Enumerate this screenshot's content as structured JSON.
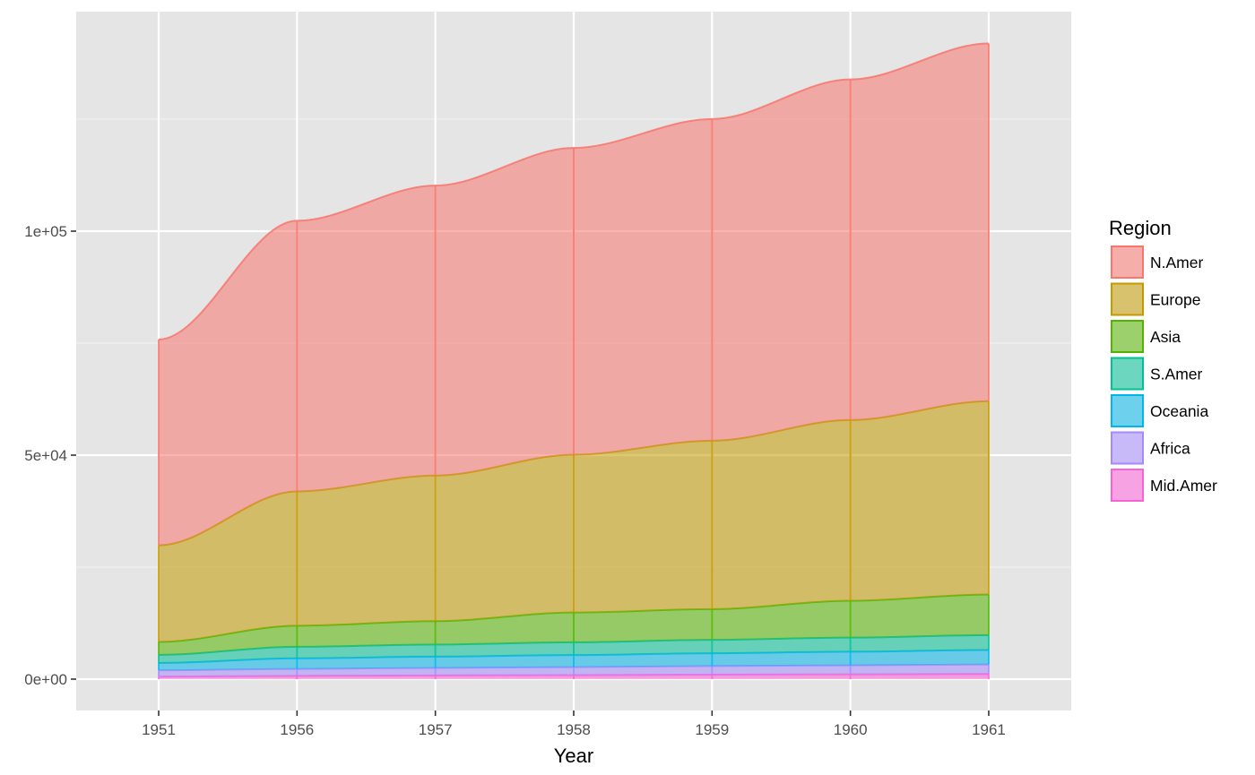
{
  "chart_data": {
    "type": "area",
    "stacked": true,
    "title": "",
    "xlabel": "Year",
    "ylabel": "",
    "x": [
      "1951",
      "1956",
      "1957",
      "1958",
      "1959",
      "1960",
      "1961"
    ],
    "ylim": [
      -7000,
      149000
    ],
    "yticks": [
      0,
      50000,
      100000
    ],
    "ytick_labels": [
      "0e+00",
      "5e+04",
      "1e+05"
    ],
    "grid": true,
    "legend": {
      "title": "Region",
      "position": "right"
    },
    "series": [
      {
        "name": "N.Amer",
        "color": "#F8766D",
        "values": [
          45939,
          60423,
          64721,
          68484,
          71799,
          76036,
          79831
        ]
      },
      {
        "name": "Europe",
        "color": "#C49A00",
        "values": [
          21574,
          29990,
          32510,
          35218,
          37598,
          40341,
          43173
        ]
      },
      {
        "name": "Asia",
        "color": "#53B400",
        "values": [
          2876,
          4708,
          5230,
          6662,
          6856,
          8220,
          9053
        ]
      },
      {
        "name": "S.Amer",
        "color": "#00C094",
        "values": [
          1815,
          2568,
          2695,
          2845,
          3000,
          3145,
          3338
        ]
      },
      {
        "name": "Oceania",
        "color": "#00B6EB",
        "values": [
          1646,
          2366,
          2526,
          2691,
          2868,
          3054,
          3224
        ]
      },
      {
        "name": "Africa",
        "color": "#A58AFF",
        "values": [
          1411,
          1546,
          1663,
          1769,
          1905,
          2005,
          2124
        ]
      },
      {
        "name": "Mid.Amer",
        "color": "#FB61D7",
        "values": [
          555,
          733,
          836,
          911,
          1008,
          1076,
          1149
        ]
      }
    ]
  }
}
